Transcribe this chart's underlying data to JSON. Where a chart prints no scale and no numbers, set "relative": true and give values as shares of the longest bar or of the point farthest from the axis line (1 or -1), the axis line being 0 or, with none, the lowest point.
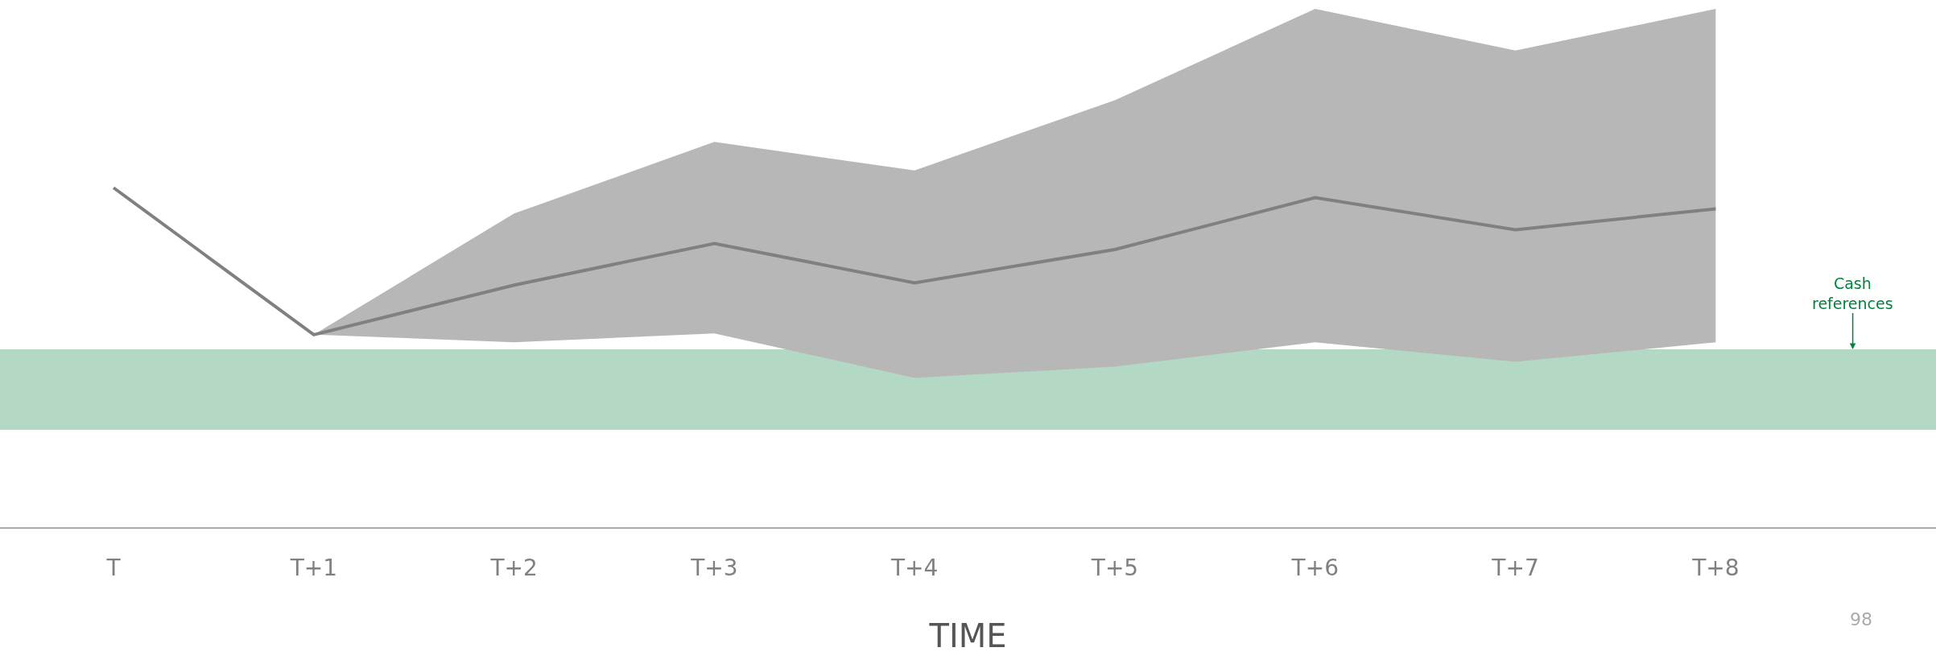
{
  "chart_data": {
    "type": "line",
    "relative": true,
    "xlabel": "TIME",
    "categories": [
      "T",
      "T+1",
      "T+2",
      "T+3",
      "T+4",
      "T+5",
      "T+6",
      "T+7",
      "T+8"
    ],
    "series": [
      {
        "color": "#808080",
        "values": [
          1.0,
          0.567,
          0.713,
          0.836,
          0.72,
          0.818,
          0.971,
          0.876,
          0.938
        ],
        "lower": [
          null,
          0.567,
          0.545,
          0.571,
          0.44,
          0.473,
          0.545,
          0.487,
          0.545
        ],
        "upper": [
          null,
          0.567,
          0.924,
          1.135,
          1.051,
          1.258,
          1.527,
          1.404,
          1.527
        ]
      }
    ],
    "bands": [
      {
        "axis": "y",
        "from": 0.287,
        "to": 0.524,
        "label": "Cash references",
        "color": "#b3d9c5"
      }
    ],
    "annotations": [
      "98"
    ],
    "grid": false,
    "marker": "none",
    "line_style": "solid"
  }
}
